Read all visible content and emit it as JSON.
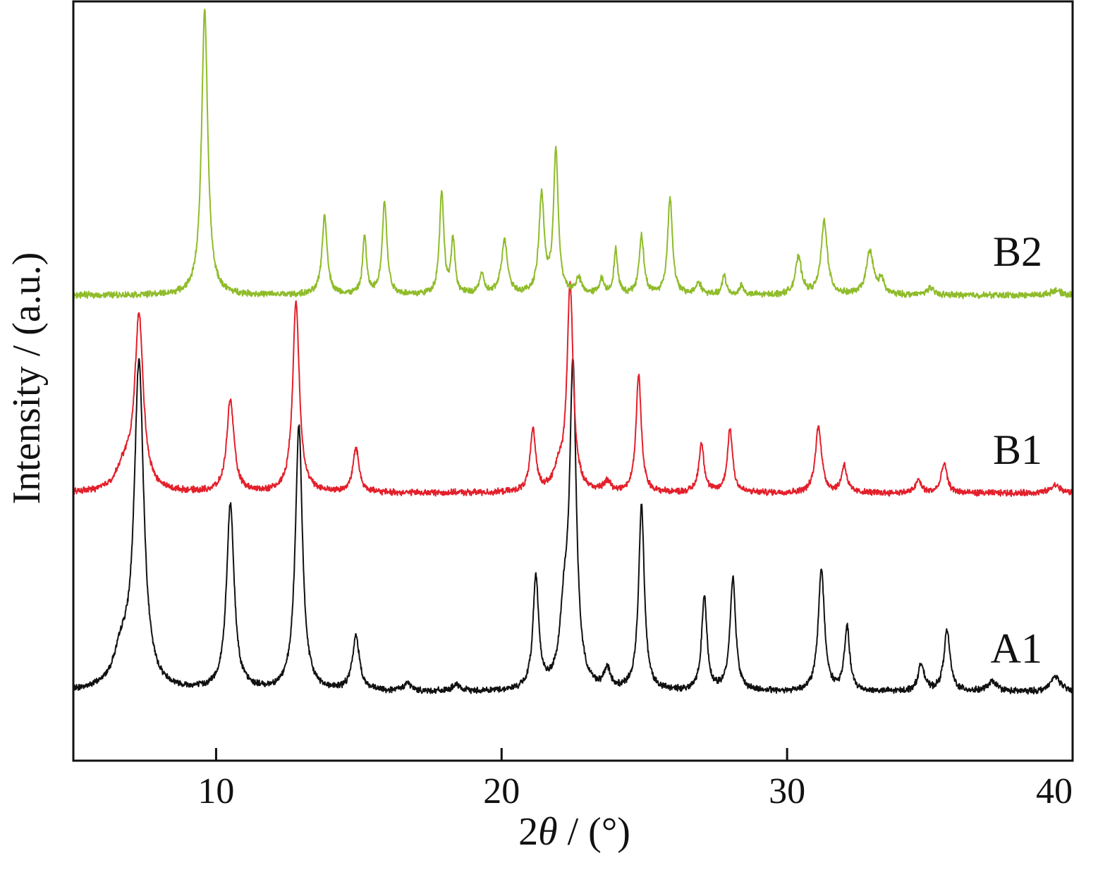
{
  "chart_data": {
    "type": "line",
    "title": "",
    "xlabel_prefix": "2",
    "xlabel_theta": "θ",
    "xlabel_suffix": " / (°)",
    "ylabel": "Intensity / (a.u.)",
    "xlim": [
      5,
      40
    ],
    "xticks": [
      10,
      20,
      30,
      40
    ],
    "yticks_shown": false,
    "grid": false,
    "legend": "none",
    "noise_amplitude": 0.025,
    "series": [
      {
        "name": "A1",
        "color": "#111111",
        "offset": 0.0,
        "peaks": [
          [
            7.3,
            3.3,
            0.2
          ],
          [
            6.7,
            0.35,
            0.35
          ],
          [
            10.5,
            1.9,
            0.16
          ],
          [
            12.9,
            2.7,
            0.15
          ],
          [
            14.9,
            0.55,
            0.15
          ],
          [
            16.7,
            0.08,
            0.15
          ],
          [
            18.4,
            0.06,
            0.15
          ],
          [
            21.2,
            1.15,
            0.12
          ],
          [
            22.2,
            0.7,
            0.18
          ],
          [
            22.5,
            3.2,
            0.14
          ],
          [
            23.7,
            0.2,
            0.12
          ],
          [
            24.9,
            1.9,
            0.12
          ],
          [
            27.1,
            0.97,
            0.11
          ],
          [
            28.1,
            1.15,
            0.12
          ],
          [
            31.2,
            1.25,
            0.13
          ],
          [
            32.1,
            0.65,
            0.11
          ],
          [
            34.7,
            0.28,
            0.13
          ],
          [
            35.6,
            0.62,
            0.13
          ],
          [
            37.2,
            0.1,
            0.2
          ],
          [
            39.4,
            0.16,
            0.2
          ]
        ]
      },
      {
        "name": "B1",
        "color": "#e3202b",
        "offset": 2.03,
        "peaks": [
          [
            7.3,
            1.75,
            0.18
          ],
          [
            6.8,
            0.25,
            0.35
          ],
          [
            10.5,
            0.95,
            0.15
          ],
          [
            12.8,
            1.95,
            0.14
          ],
          [
            14.9,
            0.45,
            0.13
          ],
          [
            21.1,
            0.62,
            0.12
          ],
          [
            22.0,
            0.2,
            0.2
          ],
          [
            22.4,
            2.1,
            0.13
          ],
          [
            23.7,
            0.1,
            0.15
          ],
          [
            24.8,
            1.2,
            0.11
          ],
          [
            27.0,
            0.5,
            0.11
          ],
          [
            28.0,
            0.65,
            0.11
          ],
          [
            31.1,
            0.68,
            0.13
          ],
          [
            32.0,
            0.28,
            0.11
          ],
          [
            34.6,
            0.13,
            0.12
          ],
          [
            35.5,
            0.3,
            0.12
          ],
          [
            39.4,
            0.08,
            0.2
          ]
        ]
      },
      {
        "name": "B2",
        "color": "#8fbc2a",
        "offset": 4.05,
        "peaks": [
          [
            9.6,
            2.9,
            0.13
          ],
          [
            13.8,
            0.8,
            0.11
          ],
          [
            15.2,
            0.6,
            0.08
          ],
          [
            15.9,
            0.95,
            0.1
          ],
          [
            17.9,
            1.05,
            0.09
          ],
          [
            18.3,
            0.55,
            0.08
          ],
          [
            19.3,
            0.2,
            0.1
          ],
          [
            20.1,
            0.55,
            0.13
          ],
          [
            21.4,
            1.0,
            0.11
          ],
          [
            21.9,
            1.45,
            0.1
          ],
          [
            22.7,
            0.15,
            0.12
          ],
          [
            23.5,
            0.15,
            0.1
          ],
          [
            24.0,
            0.45,
            0.08
          ],
          [
            24.9,
            0.6,
            0.1
          ],
          [
            25.9,
            1.0,
            0.1
          ],
          [
            26.9,
            0.12,
            0.12
          ],
          [
            27.8,
            0.2,
            0.08
          ],
          [
            28.4,
            0.1,
            0.08
          ],
          [
            30.4,
            0.38,
            0.13
          ],
          [
            31.3,
            0.75,
            0.13
          ],
          [
            32.9,
            0.45,
            0.15
          ],
          [
            33.3,
            0.15,
            0.1
          ],
          [
            35.0,
            0.07,
            0.15
          ],
          [
            39.4,
            0.05,
            0.2
          ]
        ]
      }
    ]
  }
}
